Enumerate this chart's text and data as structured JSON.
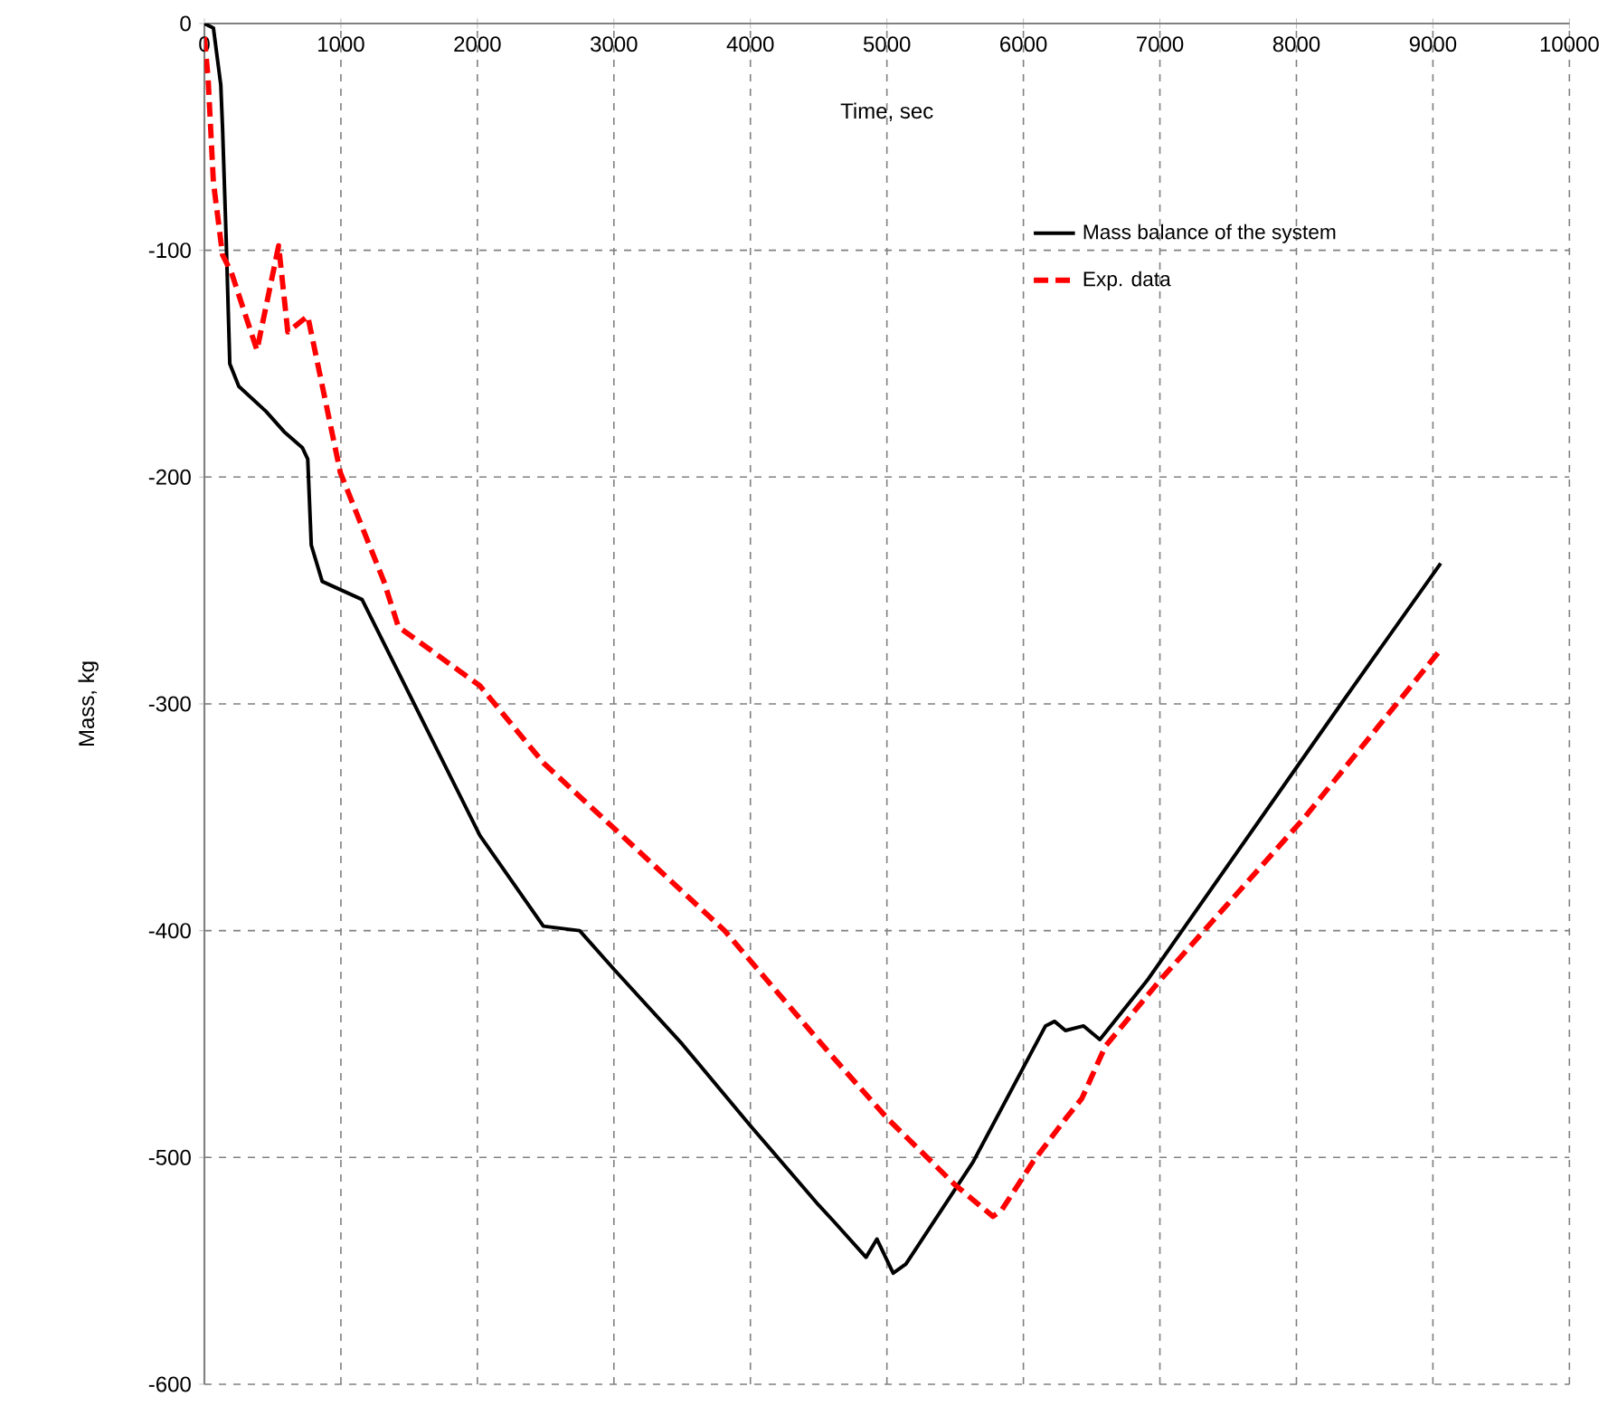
{
  "chart_data": {
    "type": "line",
    "xlabel": "Time, sec",
    "ylabel": "Mass, kg",
    "xlim": [
      0,
      10000
    ],
    "ylim": [
      -600,
      0
    ],
    "xticks": [
      0,
      1000,
      2000,
      3000,
      4000,
      5000,
      6000,
      7000,
      8000,
      9000,
      10000
    ],
    "yticks": [
      -600,
      -500,
      -400,
      -300,
      -200,
      -100,
      0
    ],
    "grid": true,
    "legend": "top right",
    "series": [
      {
        "name": "Mass balance of the system",
        "color": "#000000",
        "line_style": "solid",
        "x": [
          0,
          66,
          120,
          133,
          160,
          186,
          252,
          451,
          584,
          717,
          757,
          783,
          863,
          1155,
          1620,
          2018,
          2483,
          2749,
          3000,
          3500,
          4000,
          4500,
          4608,
          4847,
          4927,
          5046,
          5139,
          5631,
          6162,
          6228,
          6308,
          6441,
          6560,
          6906,
          8327,
          9057
        ],
        "values": [
          0,
          -2,
          -27,
          -46,
          -96,
          -150,
          -160,
          -171,
          -180,
          -187,
          -192,
          -230,
          -246,
          -254,
          -310,
          -358,
          -398,
          -400,
          -417,
          -450,
          -486,
          -521,
          -528,
          -544,
          -536,
          -551,
          -547,
          -502,
          -442,
          -440,
          -444,
          -442,
          -448,
          -422,
          -300,
          -238
        ]
      },
      {
        "name": "Exp. data",
        "color": "#ff0000",
        "line_style": "dashed",
        "x": [
          0,
          27,
          66,
          133,
          199,
          385,
          544,
          611,
          757,
          996,
          1315,
          1421,
          2018,
          2483,
          3811,
          4608,
          5007,
          5498,
          5777,
          5843,
          6069,
          6308,
          6428,
          6600,
          6999,
          8061,
          9057
        ],
        "values": [
          -6,
          -24,
          -70,
          -102,
          -110,
          -144,
          -98,
          -136,
          -129,
          -198,
          -246,
          -266,
          -292,
          -326,
          -400,
          -456,
          -483,
          -512,
          -526,
          -523,
          -502,
          -483,
          -474,
          -451,
          -422,
          -350,
          -276
        ]
      }
    ]
  }
}
